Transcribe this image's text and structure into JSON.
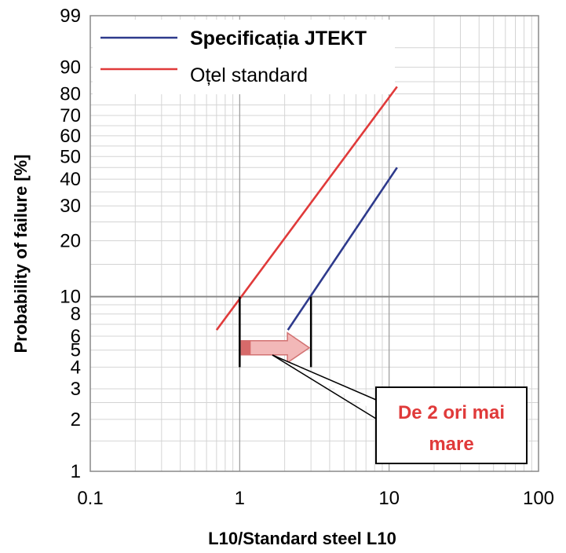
{
  "chart_data": {
    "type": "line",
    "x_scale": "log",
    "y_scale": "weibull",
    "xlim": [
      0.1,
      100
    ],
    "ylim": [
      1,
      99
    ],
    "xlabel": "L10/Standard steel L10",
    "ylabel": "Probability of failure [%]",
    "x_ticks": [
      "0.1",
      "1",
      "10",
      "100"
    ],
    "y_ticks": [
      "1",
      "2",
      "3",
      "4",
      "5",
      "6",
      "8",
      "10",
      "20",
      "30",
      "40",
      "50",
      "60",
      "70",
      "80",
      "90",
      "99"
    ],
    "grid": true,
    "legend_position": "top-left",
    "series": [
      {
        "name": "Specificația JTEKT",
        "color": "#2e3a8c",
        "x": [
          2.1,
          11.3
        ],
        "y": [
          6.5,
          45
        ]
      },
      {
        "name": "Oțel standard",
        "color": "#e03a3a",
        "x": [
          0.7,
          11.3
        ],
        "y": [
          6.5,
          83
        ]
      }
    ],
    "annotation": {
      "line1": "De 2 ori mai",
      "line2": "mare",
      "color": "#e03a3a",
      "arrow_from_x": 1,
      "arrow_to_x": 3,
      "marker_lines_x": [
        1,
        3
      ]
    }
  }
}
